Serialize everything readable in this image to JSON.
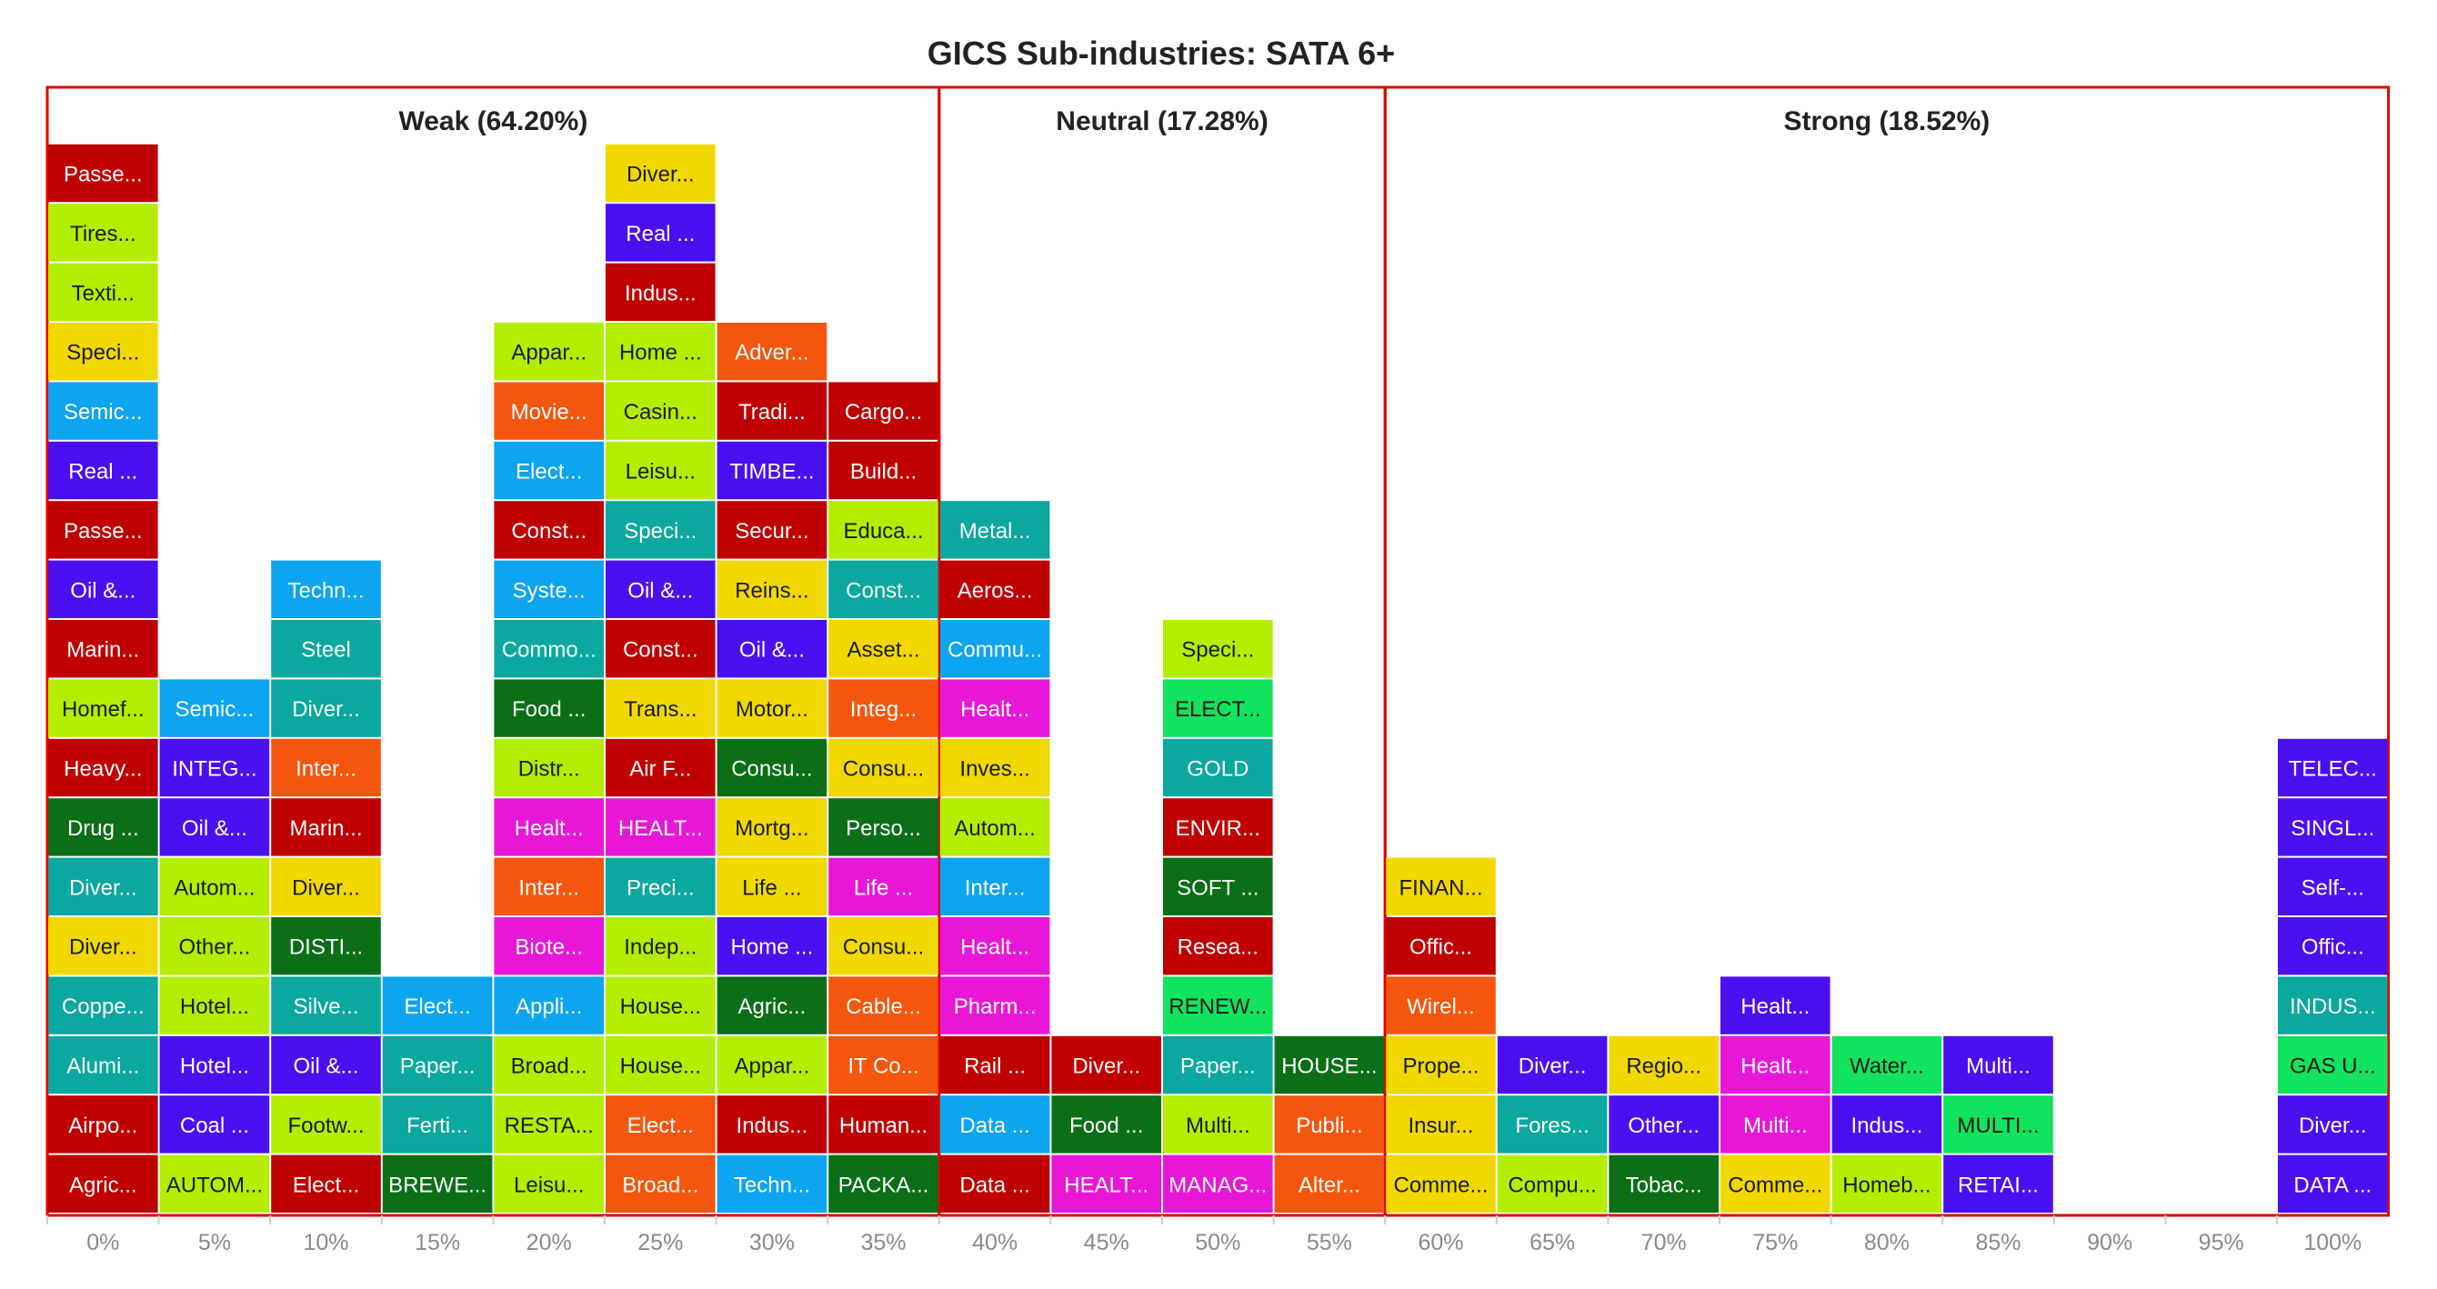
{
  "chart_data": {
    "type": "bar",
    "title": "GICS Sub-industries: SATA 6+",
    "xlabel": "",
    "ylabel": "",
    "categories": [
      "0%",
      "5%",
      "10%",
      "15%",
      "20%",
      "25%",
      "30%",
      "35%",
      "40%",
      "45%",
      "50%",
      "55%",
      "60%",
      "65%",
      "70%",
      "75%",
      "80%",
      "85%",
      "90%",
      "95%",
      "100%"
    ],
    "regions": [
      {
        "label": "Weak (64.20%)",
        "from": 0,
        "to": 8
      },
      {
        "label": "Neutral (17.28%)",
        "from": 8,
        "to": 12
      },
      {
        "label": "Strong (18.52%)",
        "from": 12,
        "to": 21
      }
    ],
    "colors": {
      "red": "#c00000",
      "lime": "#b3ee00",
      "yellow": "#f0d800",
      "sky": "#0da4f0",
      "violet": "#4a10f0",
      "green": "#0a6f16",
      "teal": "#0aa89e",
      "orange": "#f5560d",
      "magenta": "#e817d8",
      "mint": "#11e35e",
      "frame": "#e00000"
    },
    "columns": [
      {
        "bin": "0%",
        "blocks": [
          {
            "label": "Agric...",
            "color": "red"
          },
          {
            "label": "Airpo...",
            "color": "red"
          },
          {
            "label": "Alumi...",
            "color": "teal"
          },
          {
            "label": "Coppe...",
            "color": "teal"
          },
          {
            "label": "Diver...",
            "color": "yellow"
          },
          {
            "label": "Diver...",
            "color": "teal"
          },
          {
            "label": "Drug ...",
            "color": "green"
          },
          {
            "label": "Heavy...",
            "color": "red"
          },
          {
            "label": "Homef...",
            "color": "lime"
          },
          {
            "label": "Marin...",
            "color": "red"
          },
          {
            "label": "Oil &...",
            "color": "violet"
          },
          {
            "label": "Passe...",
            "color": "red"
          },
          {
            "label": "Real ...",
            "color": "violet"
          },
          {
            "label": "Semic...",
            "color": "sky"
          },
          {
            "label": "Speci...",
            "color": "yellow"
          },
          {
            "label": "Texti...",
            "color": "lime"
          },
          {
            "label": "Tires...",
            "color": "lime"
          },
          {
            "label": "Passe...",
            "color": "red"
          }
        ]
      },
      {
        "bin": "5%",
        "blocks": [
          {
            "label": "AUTOM...",
            "color": "lime"
          },
          {
            "label": "Coal ...",
            "color": "violet"
          },
          {
            "label": "Hotel...",
            "color": "violet"
          },
          {
            "label": "Hotel...",
            "color": "lime"
          },
          {
            "label": "Other...",
            "color": "lime"
          },
          {
            "label": "Autom...",
            "color": "lime"
          },
          {
            "label": "Oil &...",
            "color": "violet"
          },
          {
            "label": "INTEG...",
            "color": "violet"
          },
          {
            "label": "Semic...",
            "color": "sky"
          }
        ]
      },
      {
        "bin": "10%",
        "blocks": [
          {
            "label": "Elect...",
            "color": "red"
          },
          {
            "label": "Footw...",
            "color": "lime"
          },
          {
            "label": "Oil &...",
            "color": "violet"
          },
          {
            "label": "Silve...",
            "color": "teal"
          },
          {
            "label": "DISTI...",
            "color": "green"
          },
          {
            "label": "Diver...",
            "color": "yellow"
          },
          {
            "label": "Marin...",
            "color": "red"
          },
          {
            "label": "Inter...",
            "color": "orange"
          },
          {
            "label": "Diver...",
            "color": "teal"
          },
          {
            "label": "Steel",
            "color": "teal"
          },
          {
            "label": "Techn...",
            "color": "sky"
          }
        ]
      },
      {
        "bin": "15%",
        "blocks": [
          {
            "label": "BREWE...",
            "color": "green"
          },
          {
            "label": "Ferti...",
            "color": "teal"
          },
          {
            "label": "Paper...",
            "color": "teal"
          },
          {
            "label": "Elect...",
            "color": "sky"
          }
        ]
      },
      {
        "bin": "20%",
        "blocks": [
          {
            "label": "Leisu...",
            "color": "lime"
          },
          {
            "label": "RESTA...",
            "color": "lime"
          },
          {
            "label": "Broad...",
            "color": "lime"
          },
          {
            "label": "Appli...",
            "color": "sky"
          },
          {
            "label": "Biote...",
            "color": "magenta"
          },
          {
            "label": "Inter...",
            "color": "orange"
          },
          {
            "label": "Healt...",
            "color": "magenta"
          },
          {
            "label": "Distr...",
            "color": "lime"
          },
          {
            "label": "Food ...",
            "color": "green"
          },
          {
            "label": "Commo...",
            "color": "teal"
          },
          {
            "label": "Syste...",
            "color": "sky"
          },
          {
            "label": "Const...",
            "color": "red"
          },
          {
            "label": "Elect...",
            "color": "sky"
          },
          {
            "label": "Movie...",
            "color": "orange"
          },
          {
            "label": "Appar...",
            "color": "lime"
          }
        ]
      },
      {
        "bin": "25%",
        "blocks": [
          {
            "label": "Broad...",
            "color": "orange"
          },
          {
            "label": "Elect...",
            "color": "orange"
          },
          {
            "label": "House...",
            "color": "lime"
          },
          {
            "label": "House...",
            "color": "lime"
          },
          {
            "label": "Indep...",
            "color": "lime"
          },
          {
            "label": "Preci...",
            "color": "teal"
          },
          {
            "label": "HEALT...",
            "color": "magenta"
          },
          {
            "label": "Air F...",
            "color": "red"
          },
          {
            "label": "Trans...",
            "color": "yellow"
          },
          {
            "label": "Const...",
            "color": "red"
          },
          {
            "label": "Oil &...",
            "color": "violet"
          },
          {
            "label": "Speci...",
            "color": "teal"
          },
          {
            "label": "Leisu...",
            "color": "lime"
          },
          {
            "label": "Casin...",
            "color": "lime"
          },
          {
            "label": "Home ...",
            "color": "lime"
          },
          {
            "label": "Indus...",
            "color": "red"
          },
          {
            "label": "Real ...",
            "color": "violet"
          },
          {
            "label": "Diver...",
            "color": "yellow"
          }
        ]
      },
      {
        "bin": "30%",
        "blocks": [
          {
            "label": "Techn...",
            "color": "sky"
          },
          {
            "label": "Indus...",
            "color": "red"
          },
          {
            "label": "Appar...",
            "color": "lime"
          },
          {
            "label": "Agric...",
            "color": "green"
          },
          {
            "label": "Home ...",
            "color": "violet"
          },
          {
            "label": "Life ...",
            "color": "yellow"
          },
          {
            "label": "Mortg...",
            "color": "yellow"
          },
          {
            "label": "Consu...",
            "color": "green"
          },
          {
            "label": "Motor...",
            "color": "yellow"
          },
          {
            "label": "Oil &...",
            "color": "violet"
          },
          {
            "label": "Reins...",
            "color": "yellow"
          },
          {
            "label": "Secur...",
            "color": "red"
          },
          {
            "label": "TIMBE...",
            "color": "violet"
          },
          {
            "label": "Tradi...",
            "color": "red"
          },
          {
            "label": "Adver...",
            "color": "orange"
          }
        ]
      },
      {
        "bin": "35%",
        "blocks": [
          {
            "label": "PACKA...",
            "color": "green"
          },
          {
            "label": "Human...",
            "color": "red"
          },
          {
            "label": "IT Co...",
            "color": "orange"
          },
          {
            "label": "Cable...",
            "color": "orange"
          },
          {
            "label": "Consu...",
            "color": "yellow"
          },
          {
            "label": "Life ...",
            "color": "magenta"
          },
          {
            "label": "Perso...",
            "color": "green"
          },
          {
            "label": "Consu...",
            "color": "yellow"
          },
          {
            "label": "Integ...",
            "color": "orange"
          },
          {
            "label": "Asset...",
            "color": "yellow"
          },
          {
            "label": "Const...",
            "color": "teal"
          },
          {
            "label": "Educa...",
            "color": "lime"
          },
          {
            "label": "Build...",
            "color": "red"
          },
          {
            "label": "Cargo...",
            "color": "red"
          }
        ]
      },
      {
        "bin": "40%",
        "blocks": [
          {
            "label": "Data ...",
            "color": "red"
          },
          {
            "label": "Data ...",
            "color": "sky"
          },
          {
            "label": "Rail ...",
            "color": "red"
          },
          {
            "label": "Pharm...",
            "color": "magenta"
          },
          {
            "label": "Healt...",
            "color": "magenta"
          },
          {
            "label": "Inter...",
            "color": "sky"
          },
          {
            "label": "Autom...",
            "color": "lime"
          },
          {
            "label": "Inves...",
            "color": "yellow"
          },
          {
            "label": "Healt...",
            "color": "magenta"
          },
          {
            "label": "Commu...",
            "color": "sky"
          },
          {
            "label": "Aeros...",
            "color": "red"
          },
          {
            "label": "Metal...",
            "color": "teal"
          }
        ]
      },
      {
        "bin": "45%",
        "blocks": [
          {
            "label": "HEALT...",
            "color": "magenta"
          },
          {
            "label": "Food ...",
            "color": "green"
          },
          {
            "label": "Diver...",
            "color": "red"
          }
        ]
      },
      {
        "bin": "50%",
        "blocks": [
          {
            "label": "MANAG...",
            "color": "magenta"
          },
          {
            "label": "Multi...",
            "color": "lime"
          },
          {
            "label": "Paper...",
            "color": "teal"
          },
          {
            "label": "RENEW...",
            "color": "mint"
          },
          {
            "label": "Resea...",
            "color": "red"
          },
          {
            "label": "SOFT ...",
            "color": "green"
          },
          {
            "label": "ENVIR...",
            "color": "red"
          },
          {
            "label": "GOLD",
            "color": "teal"
          },
          {
            "label": "ELECT...",
            "color": "mint"
          },
          {
            "label": "Speci...",
            "color": "lime"
          }
        ]
      },
      {
        "bin": "55%",
        "blocks": [
          {
            "label": "Alter...",
            "color": "orange"
          },
          {
            "label": "Publi...",
            "color": "orange"
          },
          {
            "label": "HOUSE...",
            "color": "green"
          }
        ]
      },
      {
        "bin": "60%",
        "blocks": [
          {
            "label": "Comme...",
            "color": "yellow"
          },
          {
            "label": "Insur...",
            "color": "yellow"
          },
          {
            "label": "Prope...",
            "color": "yellow"
          },
          {
            "label": "Wirel...",
            "color": "orange"
          },
          {
            "label": "Offic...",
            "color": "red"
          },
          {
            "label": "FINAN...",
            "color": "yellow"
          }
        ]
      },
      {
        "bin": "65%",
        "blocks": [
          {
            "label": "Compu...",
            "color": "lime"
          },
          {
            "label": "Fores...",
            "color": "teal"
          },
          {
            "label": "Diver...",
            "color": "violet"
          }
        ]
      },
      {
        "bin": "70%",
        "blocks": [
          {
            "label": "Tobac...",
            "color": "green"
          },
          {
            "label": "Other...",
            "color": "violet"
          },
          {
            "label": "Regio...",
            "color": "yellow"
          }
        ]
      },
      {
        "bin": "75%",
        "blocks": [
          {
            "label": "Comme...",
            "color": "yellow"
          },
          {
            "label": "Multi...",
            "color": "magenta"
          },
          {
            "label": "Healt...",
            "color": "magenta"
          },
          {
            "label": "Healt...",
            "color": "violet"
          }
        ]
      },
      {
        "bin": "80%",
        "blocks": [
          {
            "label": "Homeb...",
            "color": "lime"
          },
          {
            "label": "Indus...",
            "color": "violet"
          },
          {
            "label": "Water...",
            "color": "mint"
          }
        ]
      },
      {
        "bin": "85%",
        "blocks": [
          {
            "label": "RETAI...",
            "color": "violet"
          },
          {
            "label": "MULTI...",
            "color": "mint"
          },
          {
            "label": "Multi...",
            "color": "violet"
          }
        ]
      },
      {
        "bin": "90%",
        "blocks": []
      },
      {
        "bin": "95%",
        "blocks": []
      },
      {
        "bin": "100%",
        "blocks": [
          {
            "label": "DATA ...",
            "color": "violet"
          },
          {
            "label": "Diver...",
            "color": "violet"
          },
          {
            "label": "GAS U...",
            "color": "mint"
          },
          {
            "label": "INDUS...",
            "color": "teal"
          },
          {
            "label": "Offic...",
            "color": "violet"
          },
          {
            "label": "Self-...",
            "color": "violet"
          },
          {
            "label": "SINGL...",
            "color": "violet"
          },
          {
            "label": "TELEC...",
            "color": "violet"
          }
        ]
      }
    ]
  }
}
